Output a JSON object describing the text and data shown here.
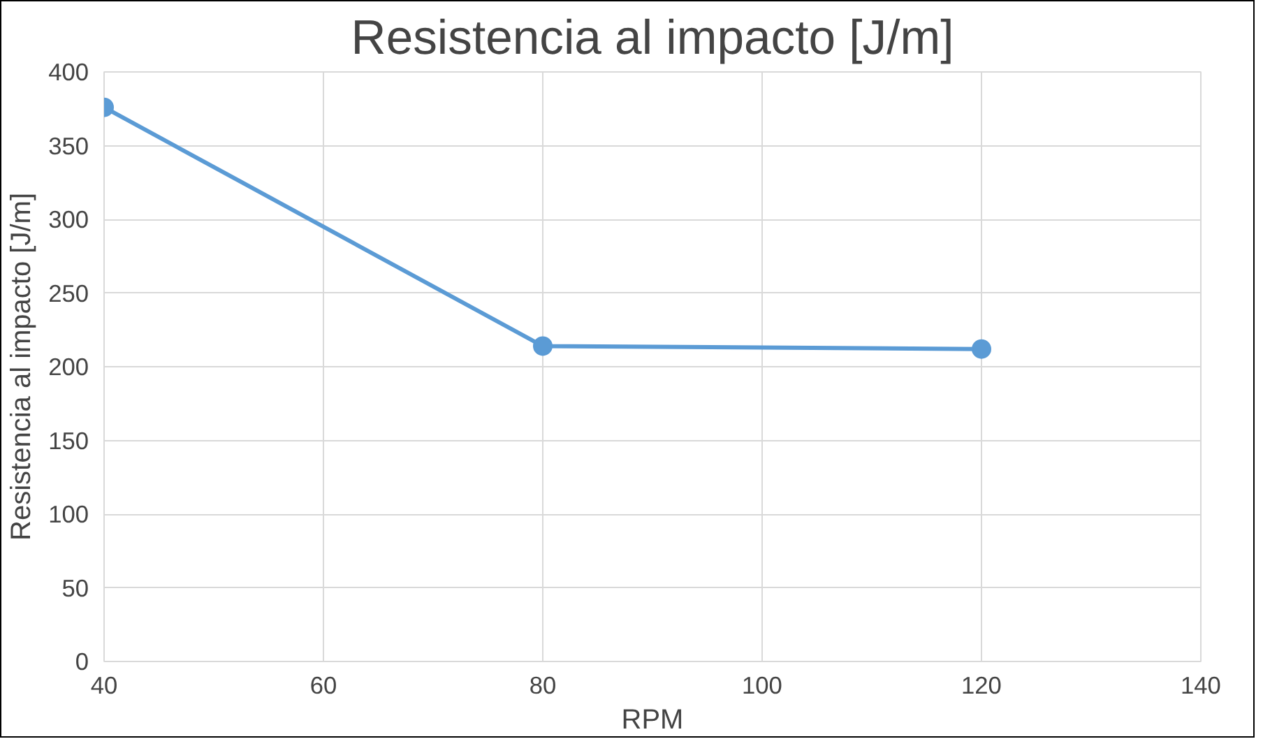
{
  "chart_data": {
    "type": "line",
    "title": "Resistencia al impacto [J/m]",
    "xlabel": "RPM",
    "ylabel": "Resistencia al impacto [J/m]",
    "x": [
      40,
      80,
      120
    ],
    "series": [
      {
        "color": "#5b9bd5",
        "values": [
          376,
          214,
          212
        ]
      }
    ],
    "xlim": [
      40,
      140
    ],
    "xticks": [
      40,
      60,
      80,
      100,
      120,
      140
    ],
    "ylim": [
      0,
      400
    ],
    "yticks": [
      0,
      50,
      100,
      150,
      200,
      250,
      300,
      350,
      400
    ],
    "grid": true,
    "marker": "circle",
    "line_style": "solid"
  }
}
